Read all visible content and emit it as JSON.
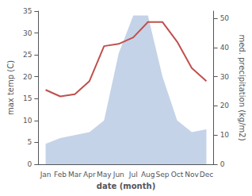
{
  "chart_data": {
    "type": "line",
    "xlabel": "date (month)",
    "ylabel": "max temp (C)",
    "y2label": "med. precipitation (kg/m2)",
    "categories": [
      "Jan",
      "Feb",
      "Mar",
      "Apr",
      "May",
      "Jun",
      "Jul",
      "Aug",
      "Sep",
      "Oct",
      "Nov",
      "Dec"
    ],
    "series": [
      {
        "type": "area",
        "axis": "y2",
        "color": "#c5d3e8",
        "values": [
          7,
          9,
          10,
          11,
          15,
          38,
          51,
          51,
          30,
          15,
          11,
          12
        ]
      },
      {
        "type": "line",
        "color": "#c0504d",
        "values": [
          17,
          15.5,
          16,
          19,
          27,
          27.5,
          29,
          32.5,
          32.5,
          28,
          22,
          19
        ]
      }
    ],
    "ylim": [
      0,
      35
    ],
    "yticks": [
      0,
      5,
      10,
      15,
      20,
      25,
      30,
      35
    ],
    "y2lim": [
      0,
      52.5
    ],
    "y2ticks": [
      0,
      10,
      20,
      30,
      40,
      50
    ],
    "grid": false
  }
}
